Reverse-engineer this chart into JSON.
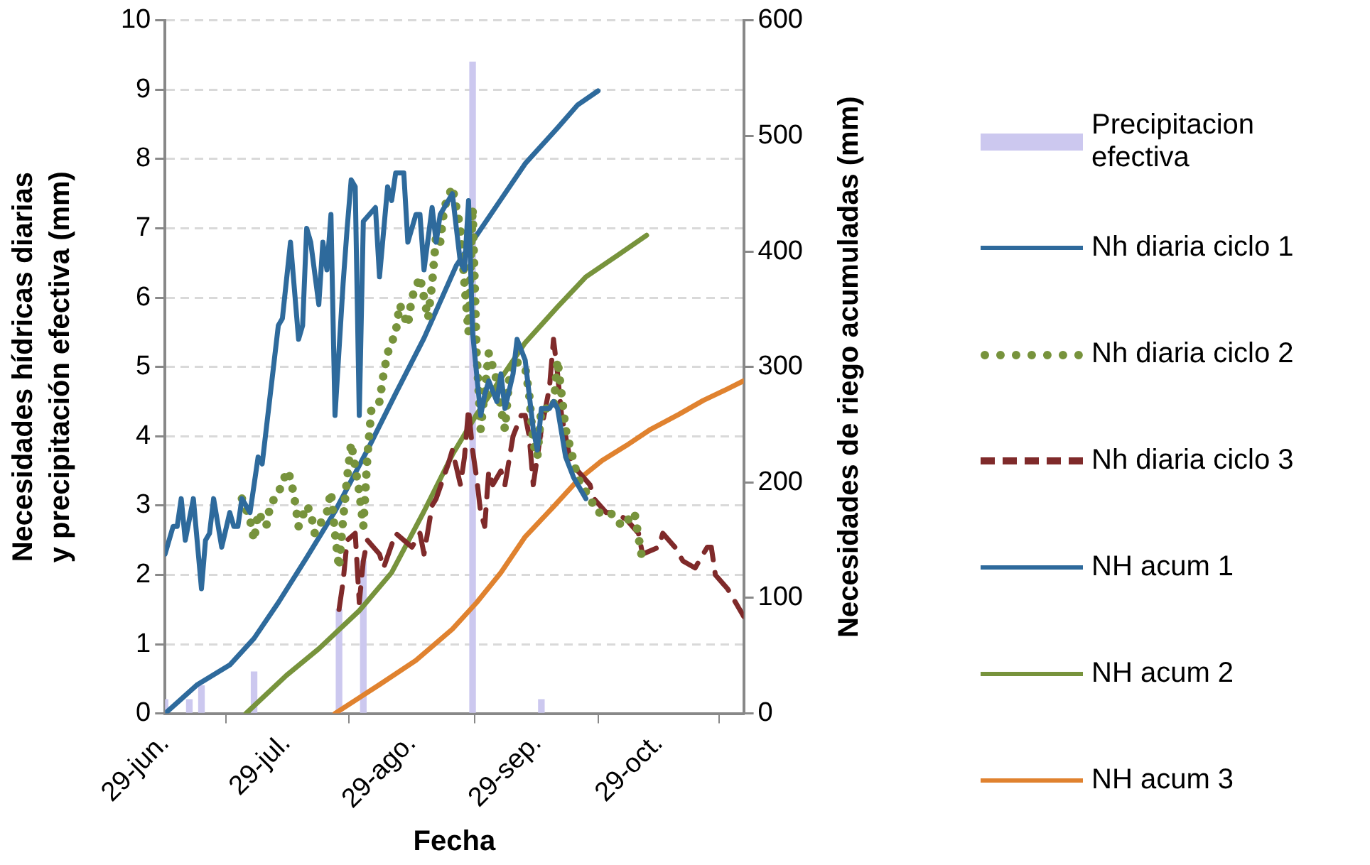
{
  "chart_data": {
    "type": "line",
    "xlabel": "Fecha",
    "ylabel": "Necesidades hídricas diarias y precipitación efectiva (mm)",
    "y2label": "Necesidades de riego acumuladas (mm)",
    "xlim": [
      "--06-29",
      "--11-19"
    ],
    "xticks": [
      {
        "value": "--06-29",
        "label": "29-jun."
      },
      {
        "value": "--07-29",
        "label": "29-jul."
      },
      {
        "value": "--08-29",
        "label": "29-ago."
      },
      {
        "value": "--09-29",
        "label": "29-sep."
      },
      {
        "value": "--10-29",
        "label": "29-oct."
      }
    ],
    "ylim": [
      0,
      10
    ],
    "yticks": [
      0,
      1,
      2,
      3,
      4,
      5,
      6,
      7,
      8,
      9,
      10
    ],
    "y2lim": [
      0,
      600
    ],
    "y2ticks": [
      0,
      100,
      200,
      300,
      400,
      500,
      600
    ],
    "grid": "y",
    "legend": "right",
    "marker": "none",
    "series": [
      {
        "name": "Precipitacion efectiva",
        "type": "bar",
        "color": "#ccc8ef",
        "x": [
          "--06-29",
          "--07-05",
          "--07-08",
          "--07-21",
          "--08-11",
          "--08-17",
          "--09-13",
          "--09-30"
        ],
        "values": [
          0.2,
          0.2,
          0.4,
          0.6,
          1.5,
          2.2,
          9.4,
          0.2
        ]
      },
      {
        "name": "Nh diaria ciclo 1",
        "line_style": "solid",
        "color": "#2e6a9c",
        "x": [
          "--06-29",
          "--07-01",
          "--07-02",
          "--07-03",
          "--07-04",
          "--07-06",
          "--07-08",
          "--07-09",
          "--07-10",
          "--07-11",
          "--07-13",
          "--07-15",
          "--07-16",
          "--07-17",
          "--07-18",
          "--07-20",
          "--07-22",
          "--07-23",
          "--07-25",
          "--07-27",
          "--07-28",
          "--07-30",
          "--08-01",
          "--08-02",
          "--08-03",
          "--08-04",
          "--08-06",
          "--08-07",
          "--08-08",
          "--08-09",
          "--08-10",
          "--08-12",
          "--08-13",
          "--08-14",
          "--08-15",
          "--08-16",
          "--08-17",
          "--08-20",
          "--08-21",
          "--08-23",
          "--08-24",
          "--08-25",
          "--08-27",
          "--08-28",
          "--08-30",
          "--08-31",
          "--09-01",
          "--09-03",
          "--09-04",
          "--09-05",
          "--09-08",
          "--09-10",
          "--09-11",
          "--09-12",
          "--09-13",
          "--09-14",
          "--09-15",
          "--09-16",
          "--09-17",
          "--09-19",
          "--09-20",
          "--09-21",
          "--09-23",
          "--09-24",
          "--09-26",
          "--09-28",
          "--09-29",
          "--09-30",
          "--10-02",
          "--10-03",
          "--10-04",
          "--10-06",
          "--10-08",
          "--10-11"
        ],
        "values": [
          2.3,
          2.7,
          2.7,
          3.1,
          2.5,
          3.1,
          1.8,
          2.5,
          2.6,
          3.1,
          2.4,
          2.9,
          2.7,
          2.7,
          3.1,
          2.9,
          3.7,
          3.6,
          4.6,
          5.6,
          5.7,
          6.8,
          5.4,
          5.6,
          7.0,
          6.8,
          5.9,
          6.8,
          6.4,
          7.2,
          4.3,
          6.2,
          7.0,
          7.7,
          7.6,
          4.3,
          7.1,
          7.3,
          6.3,
          7.6,
          7.4,
          7.8,
          7.8,
          6.8,
          7.2,
          7.2,
          6.4,
          7.3,
          6.8,
          7.2,
          7.5,
          6.5,
          6.4,
          7.4,
          5.5,
          4.9,
          4.3,
          4.6,
          4.8,
          4.5,
          4.9,
          4.4,
          4.9,
          5.4,
          5.1,
          4.1,
          3.8,
          4.4,
          4.4,
          4.5,
          4.4,
          3.7,
          3.4,
          3.1
        ]
      },
      {
        "name": "Nh diaria ciclo 2",
        "line_style": "dotted",
        "color": "#77933c",
        "x": [
          "--07-18",
          "--07-20",
          "--07-21",
          "--07-22",
          "--07-24",
          "--07-25",
          "--07-28",
          "--07-29",
          "--07-30",
          "--07-31",
          "--08-01",
          "--08-03",
          "--08-04",
          "--08-05",
          "--08-06",
          "--08-08",
          "--08-09",
          "--08-10",
          "--08-11",
          "--08-12",
          "--08-13",
          "--08-14",
          "--08-16",
          "--08-17",
          "--08-18",
          "--08-19",
          "--08-21",
          "--08-22",
          "--08-23",
          "--08-25",
          "--08-26",
          "--08-28",
          "--08-29",
          "--08-31",
          "--09-02",
          "--09-03",
          "--09-04",
          "--09-05",
          "--09-06",
          "--09-08",
          "--09-09",
          "--09-10",
          "--09-11",
          "--09-12",
          "--09-13",
          "--09-14",
          "--09-15",
          "--09-17",
          "--09-19",
          "--09-20",
          "--09-21",
          "--09-22",
          "--09-23",
          "--09-26",
          "--09-27",
          "--09-28",
          "--09-29",
          "--09-30",
          "--10-03",
          "--10-04",
          "--10-05",
          "--10-06",
          "--10-09",
          "--10-14",
          "--10-17",
          "--10-20",
          "--10-23",
          "--10-25"
        ],
        "values": [
          3.1,
          2.8,
          2.5,
          2.9,
          2.7,
          3.0,
          3.3,
          3.5,
          3.4,
          3.1,
          2.7,
          3.0,
          2.9,
          2.6,
          2.7,
          2.9,
          3.2,
          2.6,
          2.1,
          2.8,
          3.4,
          3.9,
          3.2,
          2.7,
          3.7,
          4.4,
          4.5,
          4.9,
          5.2,
          5.5,
          5.9,
          5.6,
          6.0,
          6.3,
          5.7,
          6.2,
          6.9,
          6.8,
          7.3,
          7.6,
          7.3,
          7.0,
          6.2,
          5.5,
          7.3,
          5.2,
          4.1,
          5.2,
          4.8,
          4.4,
          4.1,
          4.8,
          5.1,
          5.0,
          4.6,
          3.9,
          3.7,
          4.4,
          4.4,
          5.1,
          4.6,
          4.1,
          3.4,
          2.9,
          2.9,
          2.7,
          2.9,
          2.2
        ]
      },
      {
        "name": "Nh diaria ciclo 3",
        "line_style": "dashed",
        "color": "#7f2a2a",
        "x": [
          "--08-11",
          "--08-12",
          "--08-13",
          "--08-15",
          "--08-16",
          "--08-17",
          "--08-18",
          "--08-21",
          "--08-22",
          "--08-25",
          "--08-29",
          "--08-31",
          "--09-01",
          "--09-03",
          "--09-04",
          "--09-07",
          "--09-08",
          "--09-10",
          "--09-11",
          "--09-12",
          "--09-13",
          "--09-14",
          "--09-15",
          "--09-16",
          "--09-17",
          "--09-18",
          "--09-20",
          "--09-21",
          "--09-23",
          "--09-25",
          "--09-26",
          "--09-27",
          "--09-28",
          "--09-30",
          "--10-02",
          "--10-03",
          "--10-04",
          "--10-05",
          "--10-07",
          "--10-09",
          "--10-12",
          "--10-13",
          "--10-16",
          "--10-18",
          "--10-21",
          "--10-24",
          "--10-25",
          "--10-29",
          "--10-30",
          "--11-02",
          "--11-04",
          "--11-07",
          "--11-10",
          "--11-11",
          "--11-12",
          "--11-15",
          "--11-16",
          "--11-19"
        ],
        "values": [
          1.5,
          1.9,
          2.5,
          2.6,
          1.6,
          2.2,
          2.5,
          2.3,
          2.1,
          2.6,
          2.4,
          2.6,
          2.3,
          3.0,
          3.1,
          3.6,
          3.8,
          3.3,
          3.7,
          4.4,
          3.8,
          3.4,
          2.9,
          2.7,
          3.5,
          3.3,
          3.5,
          3.3,
          4.0,
          4.3,
          4.3,
          4.0,
          3.3,
          4.1,
          4.7,
          5.4,
          4.9,
          4.3,
          3.7,
          3.5,
          3.3,
          3.1,
          2.9,
          2.9,
          2.8,
          2.6,
          2.3,
          2.4,
          2.6,
          2.4,
          2.2,
          2.1,
          2.4,
          2.4,
          2.0,
          1.8,
          1.7,
          1.4
        ]
      },
      {
        "name": "NH acum 1",
        "axis": "y2",
        "line_style": "solid",
        "color": "#2e6a9c",
        "x": [
          "--06-29",
          "--07-07",
          "--07-15",
          "--07-21",
          "--07-27",
          "--08-03",
          "--08-10",
          "--08-18",
          "--08-25",
          "--09-01",
          "--09-09",
          "--09-14",
          "--09-20",
          "--09-26",
          "--10-04",
          "--10-09",
          "--10-14"
        ],
        "values": [
          0,
          25,
          42,
          65,
          96,
          135,
          175,
          228,
          277,
          325,
          388,
          414,
          445,
          476,
          507,
          527,
          539
        ]
      },
      {
        "name": "NH acum 2",
        "axis": "y2",
        "line_style": "solid",
        "color": "#77933c",
        "x": [
          "--07-19",
          "--07-29",
          "--08-06",
          "--08-16",
          "--08-24",
          "--09-01",
          "--09-08",
          "--09-14",
          "--09-20",
          "--09-26",
          "--10-04",
          "--10-11",
          "--10-19",
          "--10-26"
        ],
        "values": [
          0,
          33,
          56,
          89,
          122,
          175,
          224,
          259,
          290,
          321,
          352,
          378,
          397,
          414
        ]
      },
      {
        "name": "NH acum 3",
        "axis": "y2",
        "line_style": "solid",
        "color": "#e0822f",
        "x": [
          "--08-10",
          "--08-21",
          "--08-30",
          "--09-08",
          "--09-14",
          "--09-20",
          "--09-26",
          "--10-03",
          "--10-09",
          "--10-15",
          "--10-21",
          "--10-27",
          "--11-03",
          "--11-09",
          "--11-15",
          "--11-19"
        ],
        "values": [
          0,
          25,
          46,
          73,
          96,
          122,
          153,
          179,
          202,
          219,
          232,
          246,
          259,
          271,
          281,
          288
        ]
      }
    ]
  }
}
